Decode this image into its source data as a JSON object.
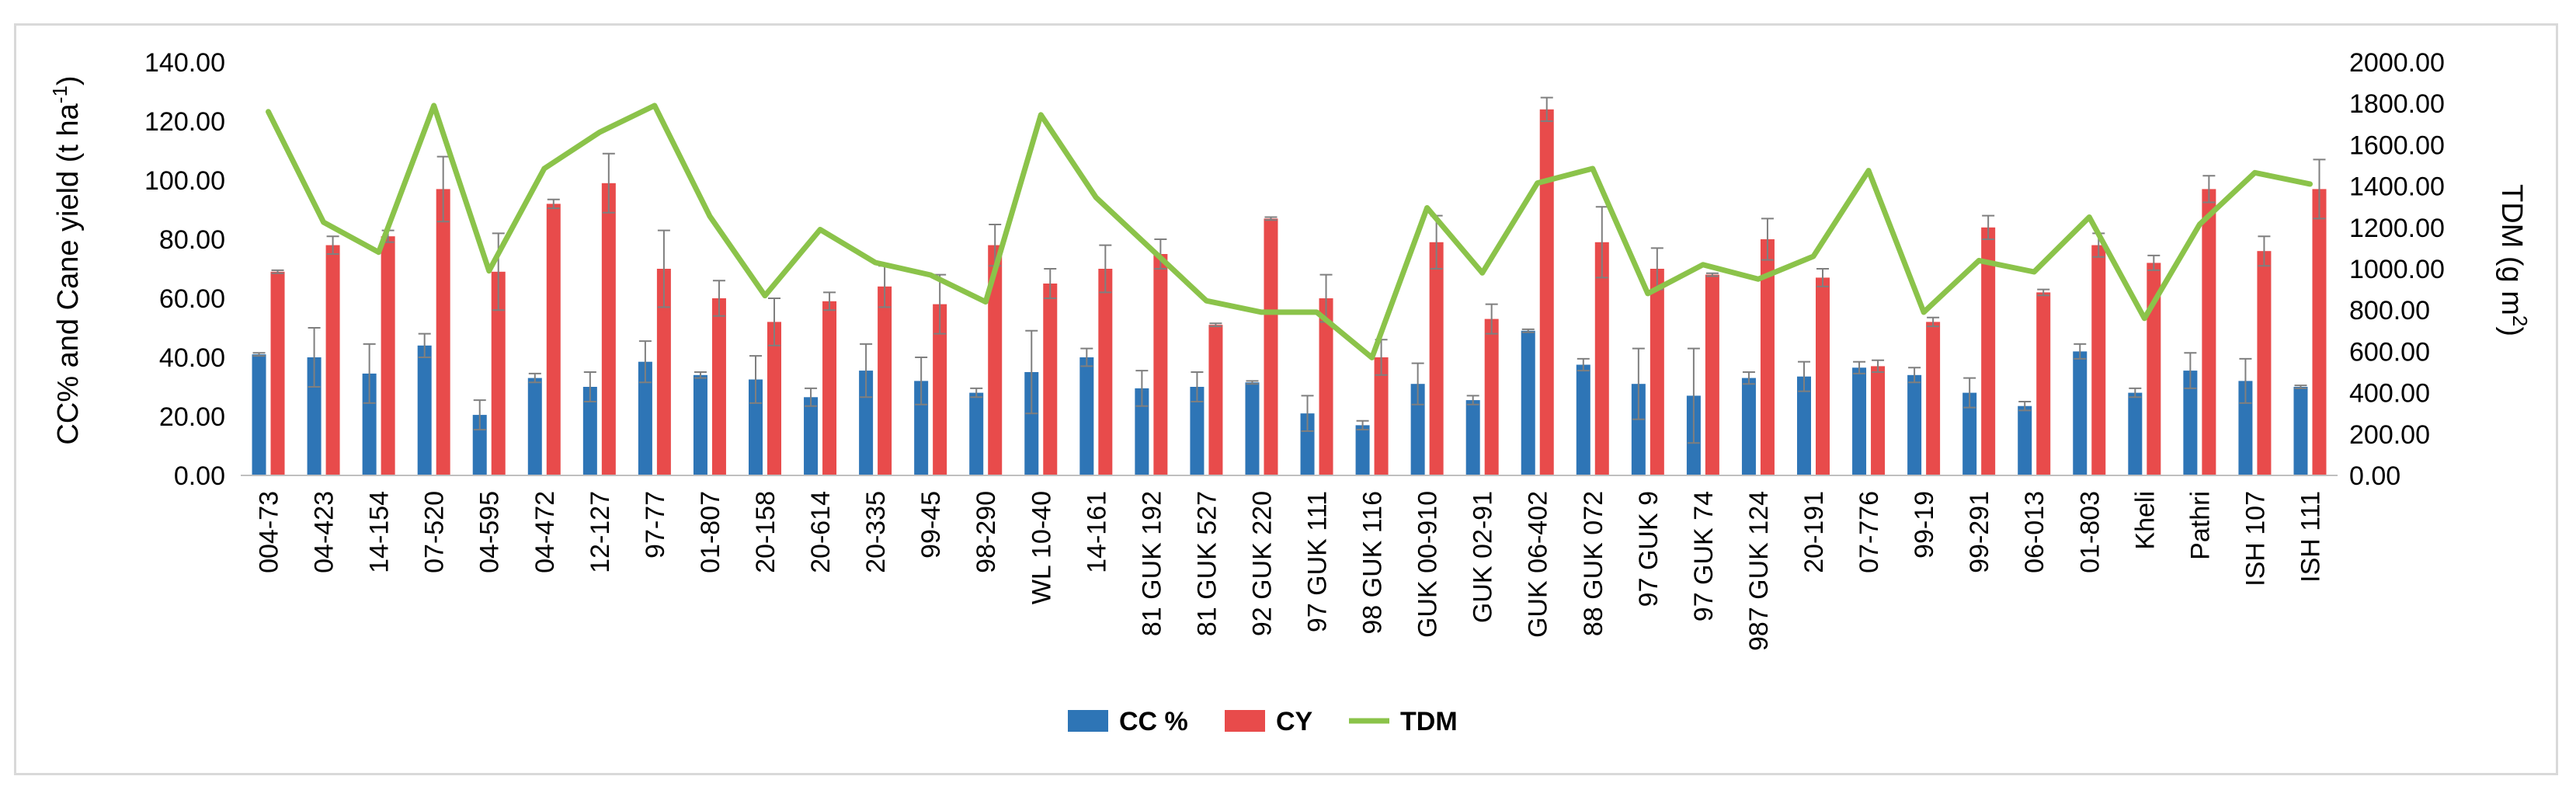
{
  "chart_data": {
    "type": "bar",
    "title": "",
    "xlabel": "",
    "ylabel": "CC% and Cane yield (t ha-1)",
    "ylabel_parts": {
      "main": "CC% and Cane yield (t ha",
      "sup": "-1",
      "end": ")"
    },
    "y2label": "TDM (g m2)",
    "y2label_parts": {
      "main": "TDM (g m",
      "sup": "2",
      "end": ")"
    },
    "ylim": [
      0,
      140
    ],
    "y2lim": [
      0,
      2000
    ],
    "yticks": [
      "0.00",
      "20.00",
      "40.00",
      "60.00",
      "80.00",
      "100.00",
      "120.00",
      "140.00"
    ],
    "y2ticks": [
      "0.00",
      "200.00",
      "400.00",
      "600.00",
      "800.00",
      "1000.00",
      "1200.00",
      "1400.00",
      "1600.00",
      "1800.00",
      "2000.00"
    ],
    "categories": [
      "004-73",
      "04-423",
      "14-154",
      "07-520",
      "04-595",
      "04-472",
      "12-127",
      "97-77",
      "01-807",
      "20-158",
      "20-614",
      "20-335",
      "99-45",
      "98-290",
      "WL 10-40",
      "14-161",
      "81 GUK 192",
      "81 GUK 527",
      "92 GUK 220",
      "97 GUK 111",
      "98 GUK 116",
      "GUK 00-910",
      "GUK 02-91",
      "GUK 06-402",
      "88 GUK 072",
      "97 GUK 9",
      "97 GUK 74",
      "987 GUK 124",
      "20-191",
      "07-776",
      "99-19",
      "99-291",
      "06-013",
      "01-803",
      "Kheli",
      "Pathri",
      "ISH 107",
      "ISH 111"
    ],
    "series": [
      {
        "name": "CC %",
        "axis": "left",
        "color": "#2e75b6",
        "values": [
          41,
          40,
          34.5,
          44,
          20.5,
          33,
          30,
          38.5,
          34,
          32.5,
          26.5,
          35.5,
          32,
          28,
          35,
          40,
          29.5,
          30,
          31.5,
          21,
          17,
          31,
          25.5,
          49,
          37.5,
          31,
          27,
          33,
          33.5,
          36.5,
          34,
          28,
          23.5,
          42,
          28,
          35.5,
          32,
          30
        ],
        "errors": [
          0.5,
          10,
          10,
          4,
          5,
          1.5,
          5,
          7,
          1,
          8,
          3,
          9,
          8,
          1.5,
          14,
          3,
          6,
          5,
          0.5,
          6,
          1.5,
          7,
          1.5,
          0.5,
          2,
          12,
          16,
          2,
          5,
          2,
          2.5,
          5,
          1.5,
          2.5,
          1.5,
          6,
          7.5,
          0.5
        ]
      },
      {
        "name": "CY",
        "axis": "left",
        "color": "#e84b4b",
        "values": [
          69,
          78,
          81,
          97,
          69,
          92,
          99,
          70,
          60,
          52,
          59,
          64,
          58,
          78,
          65,
          70,
          75,
          51,
          87,
          60,
          40,
          79,
          53,
          124,
          79,
          70,
          68,
          80,
          67,
          37,
          52,
          84,
          62,
          78,
          72,
          97,
          76,
          97
        ],
        "errors": [
          0.5,
          3,
          2,
          11,
          13,
          1.5,
          10,
          13,
          6,
          8,
          3,
          7,
          10,
          7,
          5,
          8,
          5,
          0.5,
          0.5,
          8,
          6,
          9,
          5,
          4,
          12,
          7,
          0.5,
          7,
          3,
          2,
          1.5,
          4,
          1,
          4,
          2.5,
          4.5,
          5,
          10
        ]
      },
      {
        "name": "TDM",
        "axis": "right",
        "type": "line",
        "color": "#8bc34a",
        "values": [
          1760,
          1225,
          1080,
          1790,
          990,
          1485,
          1660,
          1790,
          1255,
          870,
          1190,
          1030,
          970,
          840,
          1745,
          1345,
          1095,
          845,
          790,
          790,
          570,
          1295,
          980,
          1415,
          1485,
          880,
          1020,
          950,
          1060,
          1475,
          790,
          1040,
          985,
          1250,
          760,
          1215,
          1465,
          1410
        ]
      }
    ],
    "legend": [
      {
        "label": "CC %",
        "color": "#2e75b6",
        "kind": "box"
      },
      {
        "label": "CY",
        "color": "#e84b4b",
        "kind": "box"
      },
      {
        "label": "TDM",
        "color": "#8bc34a",
        "kind": "line"
      }
    ],
    "legend_position": "bottom",
    "grid": false
  }
}
